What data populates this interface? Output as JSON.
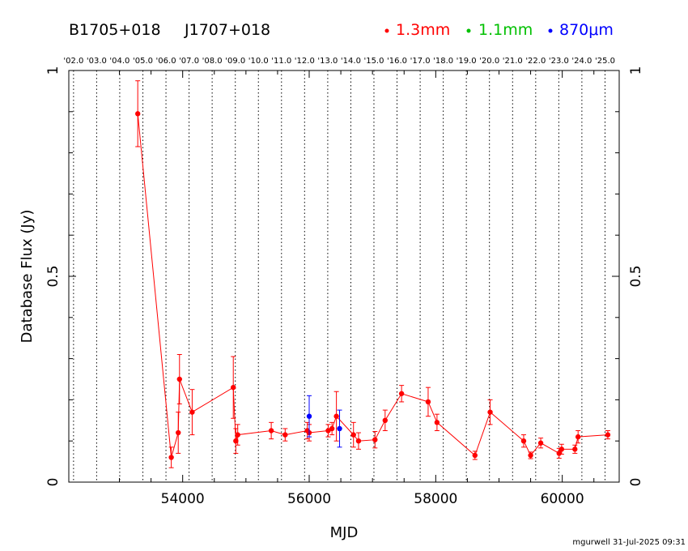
{
  "header": {
    "source_b1950": "B1705+018",
    "source_j2000": "J1707+018"
  },
  "legend": [
    {
      "label": "1.3mm",
      "color": "#ff0000"
    },
    {
      "label": "1.1mm",
      "color": "#00c000"
    },
    {
      "label": "870μm",
      "color": "#0000ff"
    }
  ],
  "footer": "mgurwell 31-Jul-2025 09:31",
  "chart_data": {
    "type": "scatter",
    "xlabel": "MJD",
    "ylabel": "Database Flux (Jy)",
    "xlim": [
      52200,
      60900
    ],
    "ylim": [
      0,
      1
    ],
    "xticks": [
      54000,
      56000,
      58000,
      60000
    ],
    "yticks": [
      0,
      0.5,
      1
    ],
    "yticklabels": [
      "0",
      "0.5",
      "1"
    ],
    "year_markers": [
      {
        "label": "'02.0",
        "mjd": 52275
      },
      {
        "label": "'03.0",
        "mjd": 52640
      },
      {
        "label": "'04.0",
        "mjd": 53005
      },
      {
        "label": "'05.0",
        "mjd": 53371
      },
      {
        "label": "'06.0",
        "mjd": 53736
      },
      {
        "label": "'07.0",
        "mjd": 54101
      },
      {
        "label": "'08.0",
        "mjd": 54466
      },
      {
        "label": "'09.0",
        "mjd": 54832
      },
      {
        "label": "'10.0",
        "mjd": 55197
      },
      {
        "label": "'11.0",
        "mjd": 55562
      },
      {
        "label": "'12.0",
        "mjd": 55927
      },
      {
        "label": "'13.0",
        "mjd": 56293
      },
      {
        "label": "'14.0",
        "mjd": 56658
      },
      {
        "label": "'15.0",
        "mjd": 57023
      },
      {
        "label": "'16.0",
        "mjd": 57388
      },
      {
        "label": "'17.0",
        "mjd": 57754
      },
      {
        "label": "'18.0",
        "mjd": 58119
      },
      {
        "label": "'19.0",
        "mjd": 58484
      },
      {
        "label": "'20.0",
        "mjd": 58849
      },
      {
        "label": "'21.0",
        "mjd": 59215
      },
      {
        "label": "'22.0",
        "mjd": 59580
      },
      {
        "label": "'23.0",
        "mjd": 59945
      },
      {
        "label": "'24.0",
        "mjd": 60310
      },
      {
        "label": "'25.0",
        "mjd": 60676
      }
    ],
    "series": [
      {
        "name": "1.3mm",
        "color": "#ff0000",
        "connected": true,
        "points": [
          {
            "x": 53290,
            "y": 0.895,
            "err": 0.08
          },
          {
            "x": 53820,
            "y": 0.06,
            "err": 0.025
          },
          {
            "x": 53930,
            "y": 0.12,
            "err": 0.05
          },
          {
            "x": 53950,
            "y": 0.25,
            "err": 0.06
          },
          {
            "x": 54150,
            "y": 0.17,
            "err": 0.055
          },
          {
            "x": 54800,
            "y": 0.23,
            "err": 0.075
          },
          {
            "x": 54840,
            "y": 0.1,
            "err": 0.03
          },
          {
            "x": 54870,
            "y": 0.115,
            "err": 0.025
          },
          {
            "x": 55400,
            "y": 0.125,
            "err": 0.02
          },
          {
            "x": 55620,
            "y": 0.115,
            "err": 0.015
          },
          {
            "x": 55970,
            "y": 0.125,
            "err": 0.02
          },
          {
            "x": 56000,
            "y": 0.12,
            "err": 0.02
          },
          {
            "x": 56300,
            "y": 0.125,
            "err": 0.015
          },
          {
            "x": 56360,
            "y": 0.13,
            "err": 0.015
          },
          {
            "x": 56430,
            "y": 0.16,
            "err": 0.06
          },
          {
            "x": 56700,
            "y": 0.115,
            "err": 0.03
          },
          {
            "x": 56780,
            "y": 0.1,
            "err": 0.02
          },
          {
            "x": 57040,
            "y": 0.103,
            "err": 0.02
          },
          {
            "x": 57200,
            "y": 0.15,
            "err": 0.025
          },
          {
            "x": 57460,
            "y": 0.215,
            "err": 0.02
          },
          {
            "x": 57880,
            "y": 0.195,
            "err": 0.035
          },
          {
            "x": 58020,
            "y": 0.145,
            "err": 0.02
          },
          {
            "x": 58620,
            "y": 0.065,
            "err": 0.01
          },
          {
            "x": 58860,
            "y": 0.17,
            "err": 0.03
          },
          {
            "x": 59390,
            "y": 0.1,
            "err": 0.015
          },
          {
            "x": 59500,
            "y": 0.065,
            "err": 0.008
          },
          {
            "x": 59660,
            "y": 0.095,
            "err": 0.012
          },
          {
            "x": 59950,
            "y": 0.07,
            "err": 0.012
          },
          {
            "x": 59990,
            "y": 0.08,
            "err": 0.012
          },
          {
            "x": 60200,
            "y": 0.08,
            "err": 0.01
          },
          {
            "x": 60250,
            "y": 0.11,
            "err": 0.015
          },
          {
            "x": 60720,
            "y": 0.115,
            "err": 0.01
          }
        ]
      },
      {
        "name": "870μm",
        "color": "#0000ff",
        "connected": false,
        "points": [
          {
            "x": 56000,
            "y": 0.16,
            "err": 0.05
          },
          {
            "x": 56480,
            "y": 0.13,
            "err": 0.045
          }
        ]
      }
    ]
  }
}
